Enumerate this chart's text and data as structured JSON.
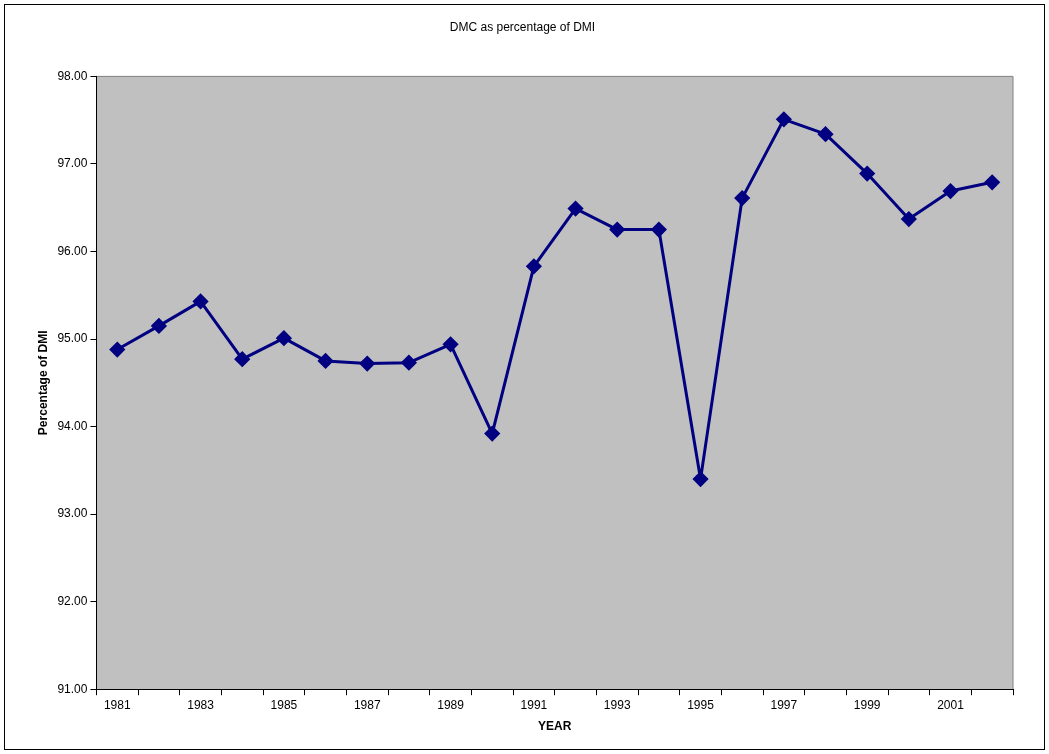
{
  "chart_data": {
    "type": "line",
    "title": "DMC as percentage of DMI",
    "xlabel": "YEAR",
    "ylabel": "Percentage of DMI",
    "categories": [
      "1981",
      null,
      "1983",
      null,
      "1985",
      null,
      "1987",
      null,
      "1989",
      null,
      "1991",
      null,
      "1993",
      null,
      "1995",
      null,
      "1997",
      null,
      "1999",
      null,
      "2001",
      null
    ],
    "series": [
      {
        "color": "#000080",
        "values": [
          94.88,
          95.15,
          95.43,
          94.77,
          95.01,
          94.75,
          94.72,
          94.73,
          94.94,
          93.92,
          95.83,
          96.49,
          96.25,
          96.25,
          93.4,
          96.61,
          97.51,
          97.34,
          96.89,
          96.37,
          96.69,
          96.79
        ]
      }
    ],
    "ylim": [
      91,
      98
    ],
    "yticks": [
      {
        "value": 91,
        "label": "91.00"
      },
      {
        "value": 92,
        "label": "92.00"
      },
      {
        "value": 93,
        "label": "93.00"
      },
      {
        "value": 94,
        "label": "94.00"
      },
      {
        "value": 95,
        "label": "95.00"
      },
      {
        "value": 96,
        "label": "96.00"
      },
      {
        "value": 97,
        "label": "97.00"
      },
      {
        "value": 98,
        "label": "98.00"
      }
    ],
    "grid": false,
    "legend": false,
    "marker": "diamond",
    "line_style": "solid"
  }
}
